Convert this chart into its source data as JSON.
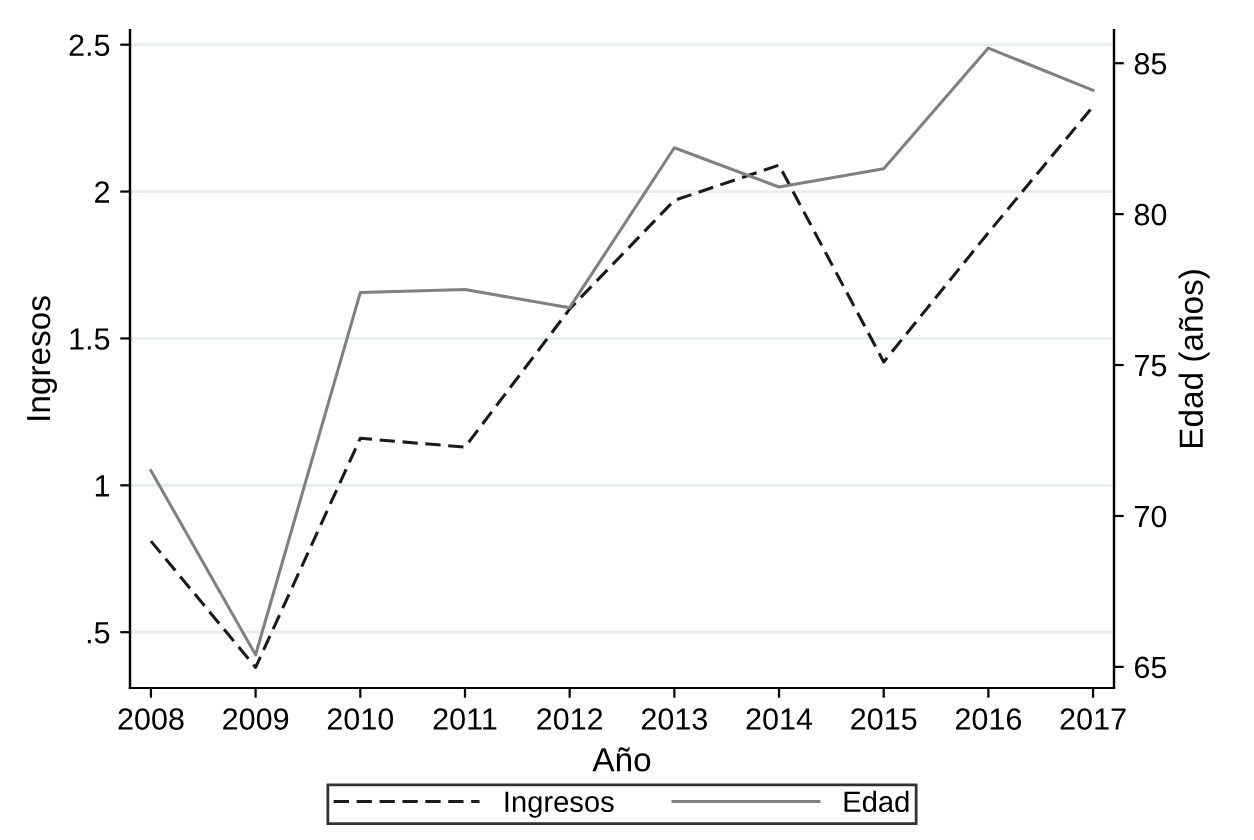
{
  "chart_data": {
    "type": "line",
    "xlabel": "Año",
    "ylabel": "Ingresos",
    "y2label": "Edad (años)",
    "x": [
      2008,
      2009,
      2010,
      2011,
      2012,
      2013,
      2014,
      2015,
      2016,
      2017
    ],
    "xlim": [
      2007.8,
      2017.2
    ],
    "xticks": [
      2008,
      2009,
      2010,
      2011,
      2012,
      2013,
      2014,
      2015,
      2016,
      2017
    ],
    "ylim": [
      0.31,
      2.55
    ],
    "yticks": [
      {
        "value": 0.5,
        "label": ".5"
      },
      1,
      1.5,
      2,
      2.5
    ],
    "y2lim": [
      64.3,
      86.1
    ],
    "y2ticks": [
      65,
      70,
      75,
      80,
      85
    ],
    "grid": "y",
    "legend": "bottom",
    "line_style": "solid",
    "marker": "none",
    "series": [
      {
        "name": "Ingresos",
        "color": "#1a1a1a",
        "line_style": "dashed",
        "values": [
          0.81,
          0.38,
          1.16,
          1.13,
          1.6,
          1.97,
          2.09,
          1.42,
          1.86,
          2.29
        ]
      },
      {
        "name": "Edad",
        "color": "#808080",
        "axis": "y2",
        "values": [
          71.5,
          65.4,
          77.4,
          77.5,
          76.9,
          82.2,
          80.9,
          81.5,
          85.5,
          84.1
        ]
      }
    ]
  }
}
